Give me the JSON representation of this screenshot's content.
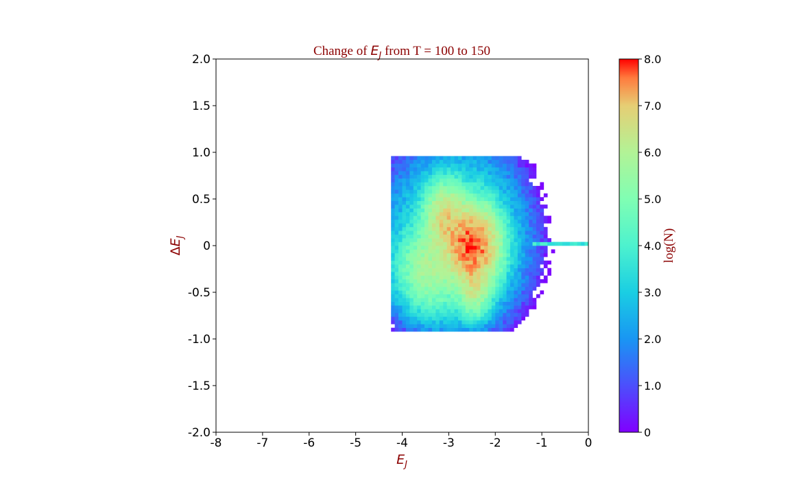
{
  "chart_data": {
    "type": "heatmap",
    "title": {
      "prefix": "Change of ",
      "var_main": "E",
      "var_sub": "J",
      "suffix": " from T = 100 to 150"
    },
    "xlabel": {
      "main": "E",
      "sub": "J"
    },
    "ylabel": {
      "delta": "Δ",
      "main": "E",
      "sub": "J"
    },
    "xlim": [
      -8,
      0
    ],
    "ylim": [
      -2,
      2
    ],
    "x_ticks": [
      "-8",
      "-7",
      "-6",
      "-5",
      "-4",
      "-3",
      "-2",
      "-1",
      "0"
    ],
    "y_ticks": [
      "2.0",
      "1.5",
      "1.0",
      "0.5",
      "0",
      "-0.5",
      "-1.0",
      "-1.5",
      "-2.0"
    ],
    "colorbar": {
      "label": "log(N)",
      "range": [
        0,
        8
      ],
      "ticks": [
        "8.0",
        "7.0",
        "6.0",
        "5.0",
        "4.0",
        "3.0",
        "2.0",
        "1.0",
        "0"
      ],
      "colormap": "rainbow"
    },
    "bin_size": [
      0.08,
      0.04
    ],
    "distribution_note": "",
    "features": [
      {
        "label": "",
        "ej": -2.5,
        "dej": 0.0,
        "logN": 8.0
      },
      {
        "label": "",
        "ej": -3.05,
        "dej": 0.3,
        "logN": 7.2
      },
      {
        "label": "",
        "ej": -2.45,
        "dej": -0.45,
        "logN": 6.2
      },
      {
        "label": "",
        "ej": -3.4,
        "dej": -0.3,
        "logN": 5.4
      },
      {
        "label": "",
        "ej": -0.6,
        "dej": 0.02,
        "logN": 3.6
      }
    ]
  }
}
